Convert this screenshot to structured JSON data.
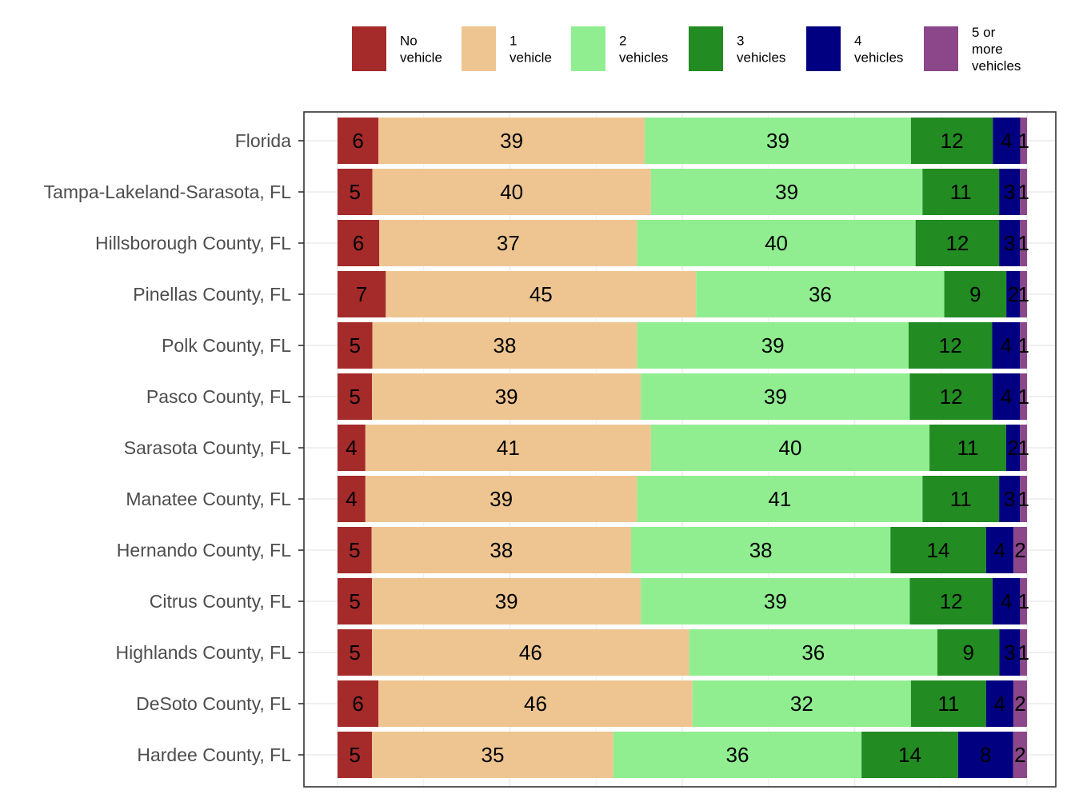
{
  "chart_data": {
    "type": "bar",
    "orientation": "horizontal",
    "stacked": true,
    "normalized_percent": true,
    "title": "",
    "xlabel": "",
    "ylabel": "",
    "xlim": [
      0,
      100
    ],
    "grid": true,
    "legend_position": "top-right",
    "categories": [
      "Florida",
      "Tampa-Lakeland-Sarasota, FL",
      "Hillsborough County, FL",
      "Pinellas County, FL",
      "Polk County, FL",
      "Pasco County, FL",
      "Sarasota County, FL",
      "Manatee County, FL",
      "Hernando County, FL",
      "Citrus County, FL",
      "Highlands County, FL",
      "DeSoto County, FL",
      "Hardee County, FL"
    ],
    "series": [
      {
        "name": "No vehicle",
        "legend_lines": [
          "No",
          "vehicle"
        ],
        "color": "#A52A2A",
        "values": [
          6,
          5,
          6,
          7,
          5,
          5,
          4,
          4,
          5,
          5,
          5,
          6,
          5
        ],
        "labels": [
          "6",
          "5",
          "6",
          "7",
          "5",
          "5",
          "4",
          "4",
          "5",
          "5",
          "5",
          "6",
          "5"
        ]
      },
      {
        "name": "1 vehicle",
        "legend_lines": [
          "1",
          "vehicle"
        ],
        "color": "#EEC591",
        "values": [
          39,
          40,
          37,
          45,
          38,
          39,
          41,
          39,
          38,
          39,
          46,
          46,
          35
        ],
        "labels": [
          "39",
          "40",
          "37",
          "45",
          "38",
          "39",
          "41",
          "39",
          "38",
          "39",
          "46",
          "46",
          "35"
        ]
      },
      {
        "name": "2 vehicles",
        "legend_lines": [
          "2",
          "vehicles"
        ],
        "color": "#90EE90",
        "values": [
          39,
          39,
          40,
          36,
          39,
          39,
          40,
          41,
          38,
          39,
          36,
          32,
          36
        ],
        "labels": [
          "39",
          "39",
          "40",
          "36",
          "39",
          "39",
          "40",
          "41",
          "38",
          "39",
          "36",
          "32",
          "36"
        ]
      },
      {
        "name": "3 vehicles",
        "legend_lines": [
          "3",
          "vehicles"
        ],
        "color": "#228B22",
        "values": [
          12,
          11,
          12,
          9,
          12,
          12,
          11,
          11,
          14,
          12,
          9,
          11,
          14
        ],
        "labels": [
          "12",
          "11",
          "12",
          "9",
          "12",
          "12",
          "11",
          "11",
          "14",
          "12",
          "9",
          "11",
          "14"
        ]
      },
      {
        "name": "4 vehicles",
        "legend_lines": [
          "4",
          "vehicles"
        ],
        "color": "#000080",
        "values": [
          4,
          3,
          3,
          2,
          4,
          4,
          2,
          3,
          4,
          4,
          3,
          4,
          8
        ],
        "labels": [
          "4",
          "3",
          "3",
          "2",
          "4",
          "4",
          "2",
          "3",
          "4",
          "4",
          "3",
          "4",
          "8"
        ]
      },
      {
        "name": "5 or more vehicles",
        "legend_lines": [
          "5 or",
          "more",
          "vehicles"
        ],
        "color": "#8B4789",
        "values": [
          1,
          1,
          1,
          1,
          1,
          1,
          1,
          1,
          2,
          1,
          1,
          2,
          2
        ],
        "labels": [
          "1",
          "1",
          "1",
          "1",
          "1",
          "1",
          "1",
          "1",
          "2",
          "1",
          "1",
          "2",
          "2"
        ]
      }
    ]
  }
}
